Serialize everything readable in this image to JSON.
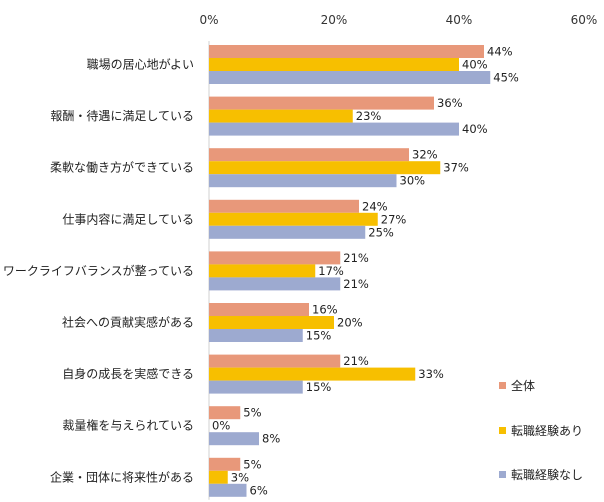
{
  "chart_data": {
    "type": "bar",
    "orientation": "horizontal",
    "categories": [
      "職場の居心地がよい",
      "報酬・待遇に満足している",
      "柔軟な働き方ができている",
      "仕事内容に満足している",
      "ワークライフバランスが整っている",
      "社会への貢献実感がある",
      "自身の成長を実感できる",
      "裁量権を与えられている",
      "企業・団体に将来性がある"
    ],
    "series": [
      {
        "name": "全体",
        "color": "#E8987A",
        "values": [
          44,
          36,
          32,
          24,
          21,
          16,
          21,
          5,
          5
        ]
      },
      {
        "name": "転職経験あり",
        "color": "#F7BF00",
        "values": [
          40,
          23,
          37,
          27,
          17,
          20,
          33,
          0,
          3
        ]
      },
      {
        "name": "転職経験なし",
        "color": "#9DAAD0",
        "values": [
          45,
          40,
          30,
          25,
          21,
          15,
          15,
          8,
          6
        ]
      }
    ],
    "xlim": [
      0,
      60
    ],
    "xticks": [
      0,
      20,
      40,
      60
    ],
    "tick_suffix": "%",
    "value_suffix": "%",
    "grid": false,
    "legend_position": "bottom-right"
  }
}
